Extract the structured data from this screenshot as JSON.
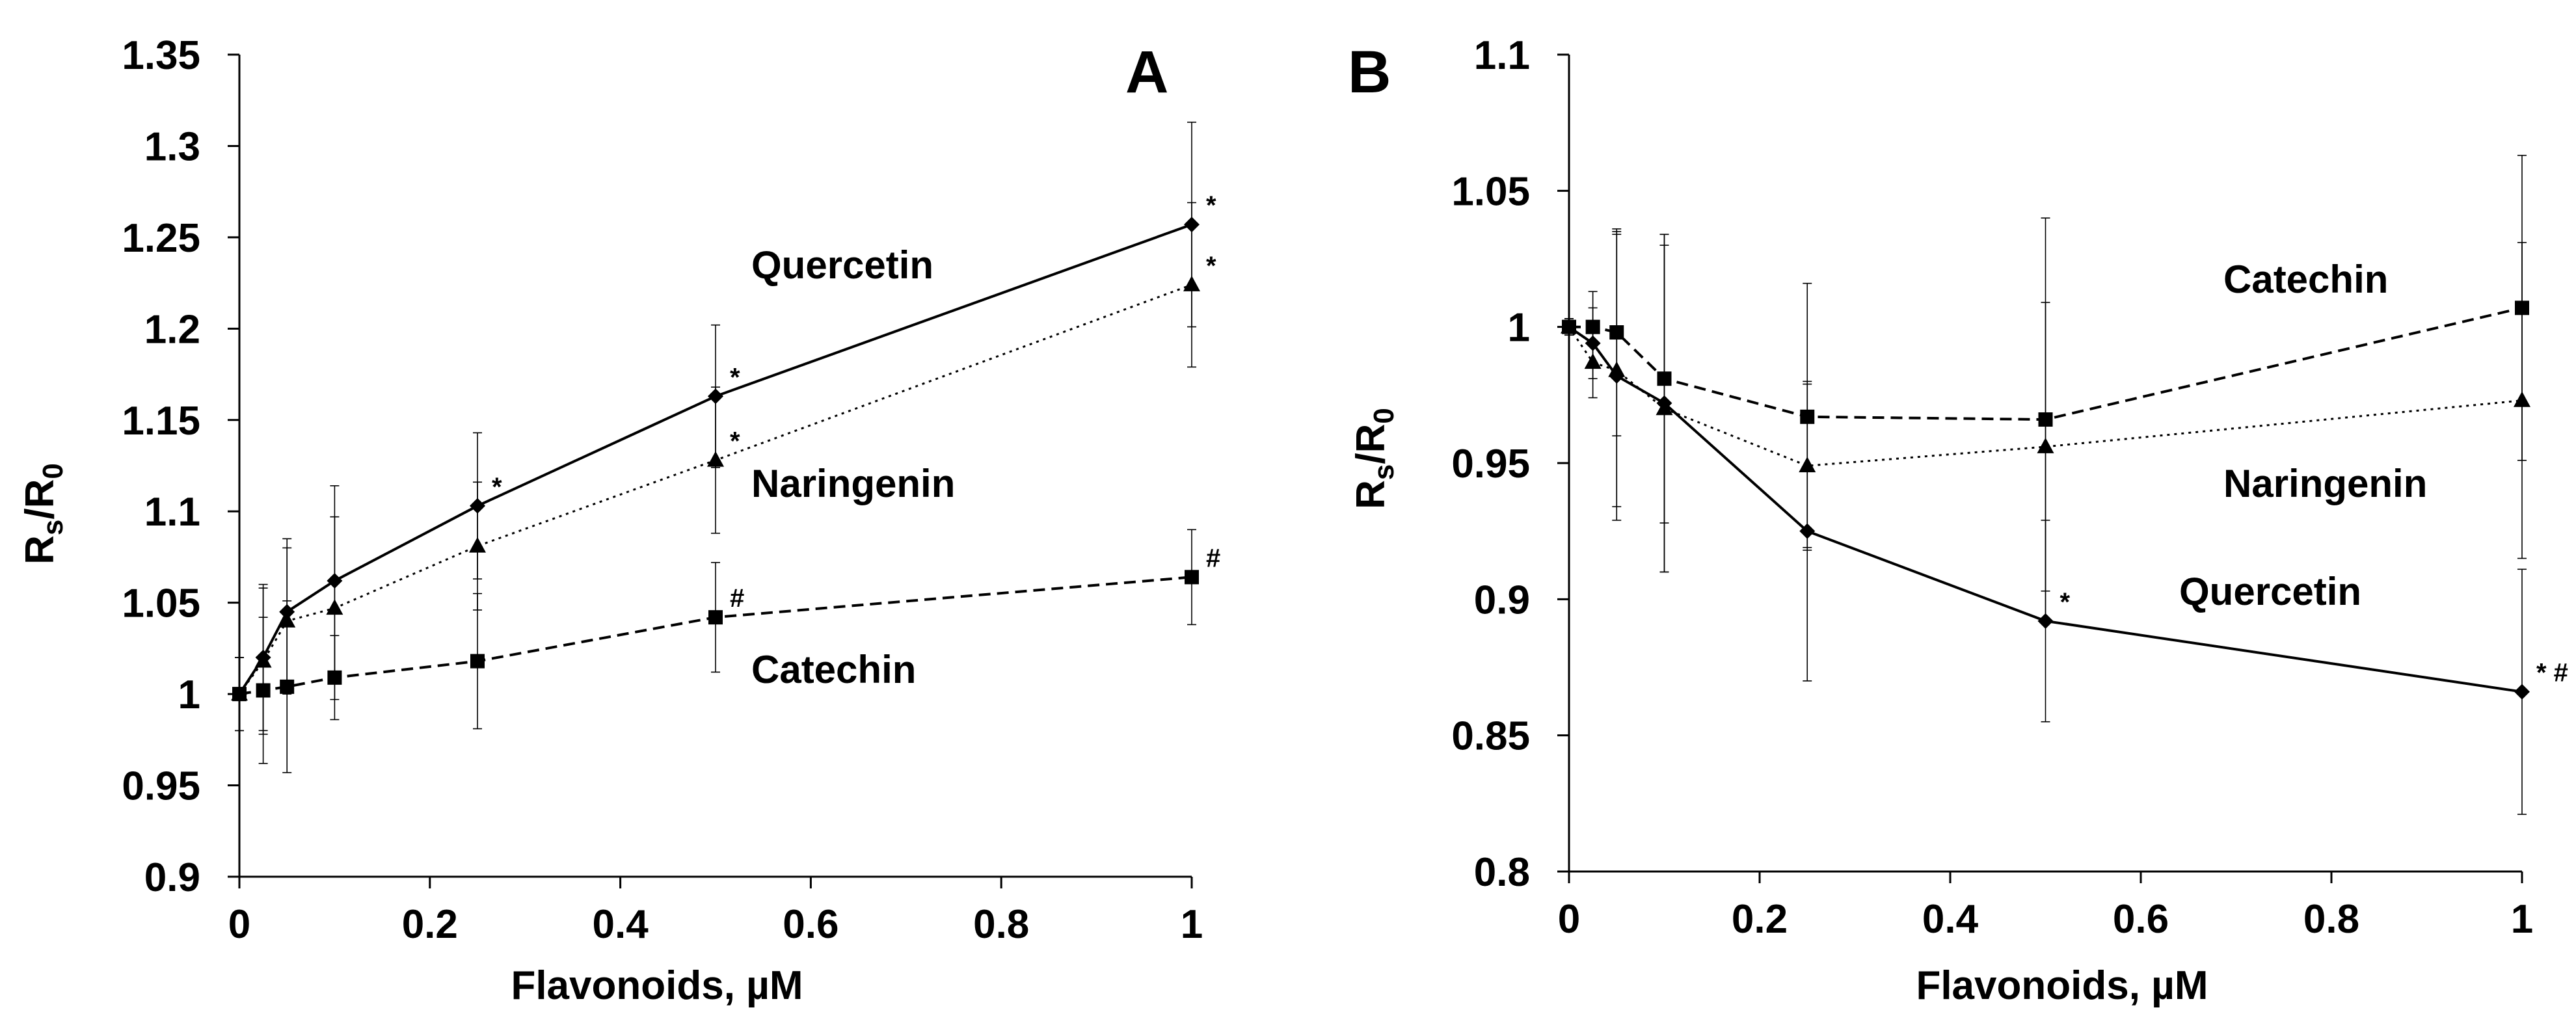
{
  "chart_data": [
    {
      "type": "line",
      "panel": "A",
      "xlabel": "Flavonoids, µM",
      "ylabel_main": "R",
      "ylabel_sub1": "s",
      "ylabel_slash": "/R",
      "ylabel_sub2": "0",
      "xlim": [
        0,
        1
      ],
      "ylim": [
        0.9,
        1.35
      ],
      "xticks": [
        0,
        0.2,
        0.4,
        0.6,
        0.8,
        1
      ],
      "xtick_labels": [
        "0",
        "0.2",
        "0.4",
        "0.6",
        "0.8",
        "1"
      ],
      "yticks": [
        0.9,
        0.95,
        1,
        1.05,
        1.1,
        1.15,
        1.2,
        1.25,
        1.3,
        1.35
      ],
      "ytick_labels": [
        "0.9",
        "0.95",
        "1",
        "1.05",
        "1.1",
        "1.15",
        "1.2",
        "1.25",
        "1.3",
        "1.35"
      ],
      "x": [
        0,
        0.025,
        0.05,
        0.1,
        0.25,
        0.5,
        1
      ],
      "series": [
        {
          "name": "Quercetin",
          "style": "solid",
          "marker": "diamond",
          "values": [
            1.0,
            1.02,
            1.045,
            1.062,
            1.103,
            1.163,
            1.257
          ],
          "errors": [
            0.02,
            0.04,
            0.04,
            0.052,
            0.04,
            0.039,
            0.056
          ],
          "sig": [
            "",
            "",
            "",
            "",
            "*",
            "*",
            "*"
          ]
        },
        {
          "name": "Naringenin",
          "style": "dotted",
          "marker": "triangle",
          "values": [
            1.0,
            1.018,
            1.04,
            1.047,
            1.081,
            1.128,
            1.224
          ],
          "errors": [
            0.02,
            0.04,
            0.04,
            0.05,
            0.035,
            0.04,
            0.045
          ],
          "sig": [
            "",
            "",
            "",
            "",
            "",
            "*",
            "*"
          ]
        },
        {
          "name": "Catechin",
          "style": "dashed",
          "marker": "square",
          "values": [
            1.0,
            1.002,
            1.004,
            1.009,
            1.018,
            1.042,
            1.064
          ],
          "errors": [
            0.02,
            0.04,
            0.047,
            0.023,
            0.037,
            0.03,
            0.026
          ],
          "sig": [
            "",
            "",
            "",
            "",
            "",
            "#",
            "#"
          ]
        }
      ],
      "series_labels": [
        "Quercetin",
        "Naringenin",
        "Catechin"
      ]
    },
    {
      "type": "line",
      "panel": "B",
      "xlabel": "Flavonoids, µM",
      "ylabel_main": "R",
      "ylabel_sub1": "s",
      "ylabel_slash": "/R",
      "ylabel_sub2": "0",
      "xlim": [
        0,
        1
      ],
      "ylim": [
        0.8,
        1.1
      ],
      "xticks": [
        0,
        0.2,
        0.4,
        0.6,
        0.8,
        1
      ],
      "xtick_labels": [
        "0",
        "0.2",
        "0.4",
        "0.6",
        "0.8",
        "1"
      ],
      "yticks": [
        0.8,
        0.85,
        0.9,
        0.95,
        1,
        1.05,
        1.1
      ],
      "ytick_labels": [
        "0.8",
        "0.85",
        "0.9",
        "0.95",
        "1",
        "1.05",
        "1.1"
      ],
      "x": [
        0,
        0.025,
        0.05,
        0.1,
        0.25,
        0.5,
        1
      ],
      "series": [
        {
          "name": "Catechin",
          "style": "dashed",
          "marker": "square",
          "values": [
            1.0,
            1.0,
            0.998,
            0.981,
            0.967,
            0.966,
            1.007
          ],
          "errors": [
            0.003,
            0.013,
            0.038,
            0.053,
            0.049,
            0.074,
            0.056
          ],
          "sig": [
            "",
            "",
            "",
            "",
            "",
            "",
            ""
          ]
        },
        {
          "name": "Naringenin",
          "style": "dotted",
          "marker": "triangle",
          "values": [
            1.0,
            0.987,
            0.984,
            0.97,
            0.949,
            0.956,
            0.973
          ],
          "errors": [
            0.003,
            0.013,
            0.05,
            0.06,
            0.03,
            0.053,
            0.058
          ],
          "sig": [
            "",
            "",
            "",
            "",
            "",
            "",
            ""
          ]
        },
        {
          "name": "Quercetin",
          "style": "solid",
          "marker": "diamond",
          "values": [
            1.0,
            0.994,
            0.982,
            0.972,
            0.925,
            0.892,
            0.866
          ],
          "errors": [
            0.003,
            0.013,
            0.053,
            0.062,
            0.055,
            0.037,
            0.045
          ],
          "sig": [
            "",
            "",
            "",
            "",
            "",
            "*",
            "* #"
          ]
        }
      ],
      "series_labels": [
        "Catechin",
        "Naringenin",
        "Quercetin"
      ]
    }
  ]
}
